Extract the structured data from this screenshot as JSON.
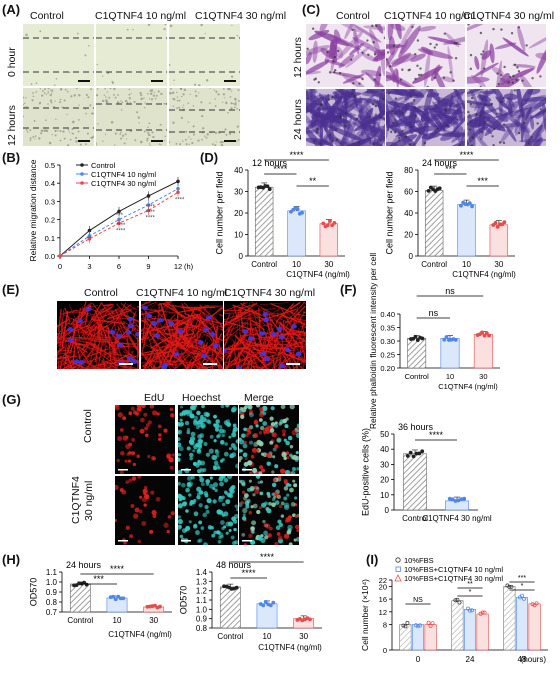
{
  "panels": {
    "A": "(A)",
    "B": "(B)",
    "C": "(C)",
    "D": "(D)",
    "E": "(E)",
    "F": "(F)",
    "G": "(G)",
    "H": "(H)",
    "I": "(I)"
  },
  "groups": {
    "control": "Control",
    "c10": "C1QTNF4 10 ng/ml",
    "c30": "C1QTNF4 30 ng/ml"
  },
  "times": {
    "h0": "0 hour",
    "h12": "12 hours",
    "h24": "24 hours",
    "h36": "36 hours",
    "h48": "48 hours"
  },
  "stain": {
    "edu": "EdU",
    "hoechst": "Hoechst",
    "merge": "Merge",
    "control": "Control",
    "c1q": "C1QTNF4",
    "c1q30": "30 ng/ml"
  },
  "colors": {
    "control": "#222222",
    "c10": "#4f86e8",
    "c30": "#e84b4b",
    "hatch": "#8a8a8a"
  },
  "chart_data": [
    {
      "id": "B",
      "type": "line",
      "xlabel": "(h)",
      "ylabel": "Relative migration distance",
      "x": [
        0,
        3,
        6,
        9,
        12
      ],
      "ylim": [
        0,
        0.5
      ],
      "yticks": [
        "0.0",
        "0.1",
        "0.2",
        "0.3",
        "0.4",
        "0.5"
      ],
      "xticks": [
        "0",
        "3",
        "6",
        "9",
        "12"
      ],
      "series": [
        {
          "name": "Control",
          "values": [
            0,
            0.14,
            0.245,
            0.33,
            0.41
          ]
        },
        {
          "name": "C1QTNF4 10 ng/ml",
          "values": [
            0,
            0.11,
            0.2,
            0.28,
            0.37
          ]
        },
        {
          "name": "C1QTNF4 30 ng/ml",
          "values": [
            0,
            0.095,
            0.18,
            0.25,
            0.35
          ]
        }
      ],
      "annotations": [
        "**",
        "****",
        "****",
        "****",
        "***",
        "****",
        "****",
        "****"
      ]
    },
    {
      "id": "D1",
      "type": "bar",
      "title": "12 hours",
      "ylabel": "Cell number per field",
      "xlabel": "C1QTNF4 (ng/ml)",
      "categories": [
        "Control",
        "10",
        "30"
      ],
      "values": [
        32,
        21,
        15
      ],
      "ylim": [
        0,
        40
      ],
      "yticks": [
        "0",
        "10",
        "20",
        "30",
        "40"
      ],
      "sig": [
        "****",
        "****",
        "**"
      ]
    },
    {
      "id": "D2",
      "type": "bar",
      "title": "24 hours",
      "ylabel": "Cell number per field",
      "xlabel": "C1QTNF4 (ng/ml)",
      "categories": [
        "Control",
        "10",
        "30"
      ],
      "values": [
        61,
        48,
        29
      ],
      "ylim": [
        0,
        80
      ],
      "yticks": [
        "0",
        "20",
        "40",
        "60",
        "80"
      ],
      "sig": [
        "****",
        "***",
        "***"
      ]
    },
    {
      "id": "F",
      "type": "bar",
      "ylabel": "Relative phalloidin fluorescent intensity per cell",
      "xlabel": "C1QTNF4 (ng/ml)",
      "categories": [
        "Control",
        "10",
        "30"
      ],
      "values": [
        0.31,
        0.31,
        0.325
      ],
      "ylim": [
        0.2,
        0.4
      ],
      "yticks": [
        "0.20",
        "0.25",
        "0.30",
        "0.35",
        "0.40"
      ],
      "sig": [
        "ns",
        "ns"
      ]
    },
    {
      "id": "G",
      "type": "bar",
      "title": "36 hours",
      "ylabel": "EdU-positive cells (%)",
      "categories": [
        "Control",
        "C1QTNF4 30 ng/ml"
      ],
      "values": [
        37,
        6
      ],
      "ylim": [
        0,
        50
      ],
      "yticks": [
        "0",
        "10",
        "20",
        "30",
        "40",
        "50"
      ],
      "sig": [
        "****"
      ]
    },
    {
      "id": "H1",
      "type": "bar",
      "title": "24 hours",
      "ylabel": "OD570",
      "xlabel": "C1QTNF4 (ng/ml)",
      "categories": [
        "Control",
        "10",
        "30"
      ],
      "values": [
        0.98,
        0.84,
        0.75
      ],
      "ylim": [
        0.7,
        1.1
      ],
      "yticks": [
        "0.7",
        "0.8",
        "0.9",
        "1.0",
        "1.1"
      ],
      "sig": [
        "****",
        "***"
      ]
    },
    {
      "id": "H2",
      "type": "bar",
      "title": "48 hours",
      "ylabel": "OD570",
      "xlabel": "C1QTNF4 (ng/ml)",
      "categories": [
        "Control",
        "10",
        "30"
      ],
      "values": [
        1.24,
        1.06,
        0.9
      ],
      "ylim": [
        0.8,
        1.4
      ],
      "yticks": [
        "0.8",
        "0.9",
        "1.0",
        "1.1",
        "1.2",
        "1.3",
        "1.4"
      ],
      "sig": [
        "****",
        "****"
      ]
    },
    {
      "id": "I",
      "type": "bar",
      "ylabel": "Cell number (×10⁴)",
      "xlabel": "(hours)",
      "categories": [
        "0",
        "24",
        "48"
      ],
      "ylim": [
        0,
        22
      ],
      "yticks": [
        "0",
        "2",
        "4",
        "6",
        "8",
        "10",
        "12",
        "14",
        "16",
        "18",
        "20",
        "22"
      ],
      "series": [
        {
          "name": "10%FBS",
          "values": [
            8,
            15.5,
            20
          ]
        },
        {
          "name": "10%FBS+C1QTNF4 10 ng/ml",
          "values": [
            8,
            12.8,
            16.5
          ]
        },
        {
          "name": "10%FBS+C1QTNF4 30 ng/ml",
          "values": [
            8,
            11.3,
            14.5
          ]
        }
      ],
      "sig": [
        "NS",
        "**",
        "*",
        "***",
        "*"
      ]
    }
  ]
}
